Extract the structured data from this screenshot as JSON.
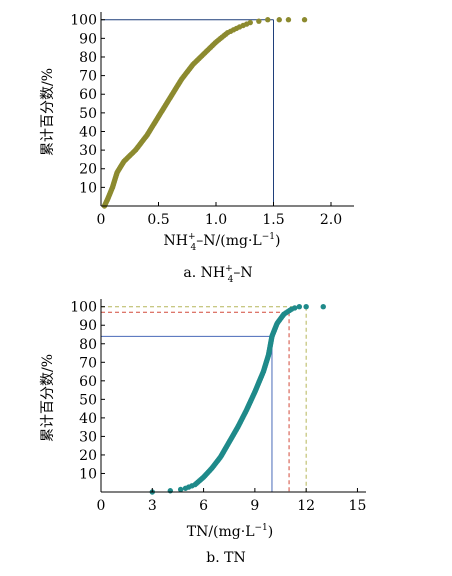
{
  "chart_data": [
    {
      "type": "scatter",
      "caption_prefix": "a. ",
      "caption_label": "NH",
      "caption_sup": "+",
      "caption_sub": "4",
      "caption_rest": "–N",
      "xlabel_main": "NH",
      "xlabel_sup": "+",
      "xlabel_sub": "4",
      "xlabel_rest": "–N/(mg·L",
      "xlabel_exp": "−1",
      "xlabel_close": ")",
      "ylabel": "累计百分数/%",
      "xlim": [
        0,
        2.2
      ],
      "ylim": [
        0,
        102
      ],
      "xticks": [
        {
          "v": 0,
          "label": "0"
        },
        {
          "v": 0.5,
          "label": "0.5"
        },
        {
          "v": 1.0,
          "label": "1.0"
        },
        {
          "v": 1.5,
          "label": "1.5"
        },
        {
          "v": 2.0,
          "label": "2.0"
        }
      ],
      "yticks": [
        10,
        20,
        30,
        40,
        50,
        60,
        70,
        80,
        90,
        100
      ],
      "point_color": "#8c8a2f",
      "curve": [
        [
          0.03,
          0
        ],
        [
          0.06,
          4
        ],
        [
          0.1,
          10
        ],
        [
          0.14,
          18
        ],
        [
          0.2,
          24
        ],
        [
          0.3,
          30
        ],
        [
          0.4,
          38
        ],
        [
          0.5,
          48
        ],
        [
          0.6,
          58
        ],
        [
          0.7,
          68
        ],
        [
          0.8,
          76
        ],
        [
          0.9,
          82
        ],
        [
          1.0,
          88
        ],
        [
          1.1,
          93
        ],
        [
          1.2,
          96
        ],
        [
          1.3,
          98.5
        ],
        [
          1.45,
          100
        ]
      ],
      "curve_points": 130,
      "extra_points": [
        [
          1.55,
          100
        ],
        [
          1.63,
          100
        ],
        [
          1.77,
          100
        ]
      ],
      "reference_lines": [
        {
          "x": 1.5,
          "y": 100,
          "color": "#1f3f7a",
          "dash": "solid"
        }
      ]
    },
    {
      "type": "scatter",
      "caption_prefix": "b. ",
      "caption_label": "TN",
      "xlabel_main": "TN/(mg·L",
      "xlabel_exp": "−1",
      "xlabel_close": ")",
      "ylabel": "累计百分数/%",
      "xlim": [
        0,
        15.5
      ],
      "ylim": [
        0,
        102
      ],
      "xticks": [
        {
          "v": 0,
          "label": "0"
        },
        {
          "v": 3,
          "label": "3"
        },
        {
          "v": 6,
          "label": "6"
        },
        {
          "v": 9,
          "label": "9"
        },
        {
          "v": 12,
          "label": "12"
        },
        {
          "v": 15,
          "label": "15"
        }
      ],
      "yticks": [
        10,
        20,
        30,
        40,
        50,
        60,
        70,
        80,
        90,
        100
      ],
      "point_color": "#1f8a8a",
      "curve": [
        [
          3.0,
          0
        ],
        [
          3.9,
          0.5
        ],
        [
          4.8,
          1.5
        ],
        [
          5.5,
          4
        ],
        [
          6.0,
          8
        ],
        [
          6.5,
          13
        ],
        [
          7.0,
          19
        ],
        [
          7.5,
          27
        ],
        [
          8.0,
          35
        ],
        [
          8.5,
          44
        ],
        [
          9.0,
          54
        ],
        [
          9.5,
          65
        ],
        [
          9.8,
          74
        ],
        [
          10.0,
          84
        ],
        [
          10.3,
          91
        ],
        [
          10.7,
          96
        ],
        [
          11.2,
          99
        ],
        [
          11.6,
          100
        ]
      ],
      "curve_points": 150,
      "extra_points": [
        [
          12.0,
          100
        ],
        [
          13.0,
          100
        ]
      ],
      "reference_lines": [
        {
          "x": 10.0,
          "y": 84,
          "color": "#4a6ab8",
          "dash": "solid"
        },
        {
          "x": 11.0,
          "y": 97,
          "color": "#d24a3a",
          "dash": "dashed"
        },
        {
          "x": 12.0,
          "y": 100,
          "color": "#b6b65a",
          "dash": "dashed"
        }
      ]
    }
  ]
}
